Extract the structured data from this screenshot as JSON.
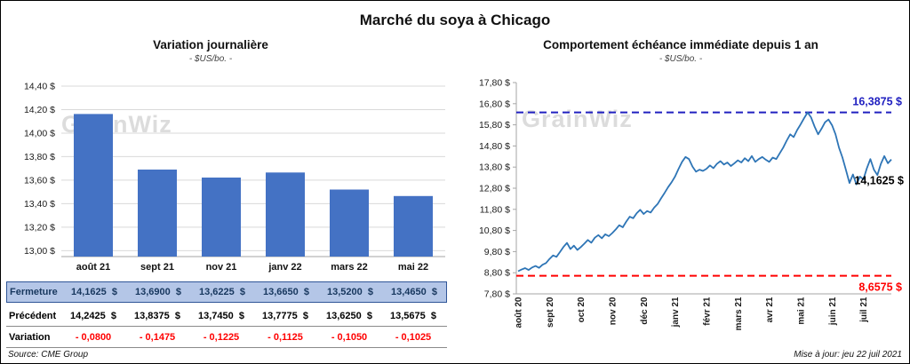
{
  "page": {
    "title": "Marché du soya à Chicago",
    "source_note": "Source: CME Group",
    "update_note": "Mise à jour: jeu 22 juil 2021",
    "watermark": "GrainWiz"
  },
  "colors": {
    "bar": "#4472C4",
    "line": "#2E75B6",
    "high": "#2020C0",
    "low": "#FF0000",
    "grid": "#D9D9D9",
    "axis": "#A6A6A6",
    "watermark": "#DCDCDC",
    "table_highlight_bg": "#B4C6E7",
    "table_highlight_text": "#17375E",
    "negative": "#FF0000"
  },
  "chart_data": [
    {
      "type": "bar",
      "title": "Variation  journalière",
      "subtitle": "- $US/bo. -",
      "categories": [
        "août 21",
        "sept 21",
        "nov 21",
        "janv 22",
        "mars 22",
        "mai 22"
      ],
      "values": [
        14.1625,
        13.69,
        13.6225,
        13.665,
        13.52,
        13.465
      ],
      "ylim": [
        12.95,
        14.4
      ],
      "yticks": [
        14.4,
        14.2,
        14.0,
        13.8,
        13.6,
        13.4,
        13.2,
        13.0
      ],
      "grid": true,
      "legend": "none"
    },
    {
      "type": "line",
      "title": "Comportement  échéance  immédiate  depuis 1 an",
      "subtitle": "- $US/bo. -",
      "x_labels": [
        "août 20",
        "sept 20",
        "oct 20",
        "nov 20",
        "déc 20",
        "janv 21",
        "févr 21",
        "mars 21",
        "avr 21",
        "mai 21",
        "juin 21",
        "juil 21"
      ],
      "values": [
        8.87,
        8.95,
        9.02,
        8.93,
        9.05,
        9.12,
        9.03,
        9.18,
        9.26,
        9.45,
        9.62,
        9.55,
        9.78,
        10.02,
        10.21,
        9.92,
        10.08,
        9.88,
        10.02,
        10.18,
        10.35,
        10.22,
        10.46,
        10.58,
        10.43,
        10.62,
        10.53,
        10.68,
        10.85,
        11.05,
        10.95,
        11.22,
        11.45,
        11.38,
        11.62,
        11.78,
        11.58,
        11.72,
        11.65,
        11.88,
        12.05,
        12.32,
        12.58,
        12.85,
        13.08,
        13.35,
        13.72,
        14.05,
        14.28,
        14.18,
        13.82,
        13.58,
        13.68,
        13.62,
        13.72,
        13.88,
        13.75,
        13.95,
        14.08,
        13.92,
        14.02,
        13.85,
        13.98,
        14.12,
        14.02,
        14.22,
        14.08,
        14.32,
        14.05,
        14.18,
        14.28,
        14.15,
        14.05,
        14.25,
        14.18,
        14.45,
        14.72,
        15.05,
        15.35,
        15.22,
        15.55,
        15.82,
        16.12,
        16.39,
        16.15,
        15.72,
        15.35,
        15.62,
        15.92,
        16.05,
        15.78,
        15.35,
        14.72,
        14.25,
        13.65,
        13.05,
        13.45,
        12.98,
        13.35,
        13.22,
        13.75,
        14.18,
        13.68,
        13.42,
        13.95,
        14.32,
        13.98,
        14.1625
      ],
      "ylim": [
        7.8,
        17.8
      ],
      "yticks": [
        17.8,
        16.8,
        15.8,
        14.8,
        13.8,
        12.8,
        11.8,
        10.8,
        9.8,
        8.8,
        7.8
      ],
      "grid": false,
      "legend": "none",
      "x_label_rotation": 90,
      "high_line": {
        "value": 16.3875,
        "label": "16,3875  $"
      },
      "low_line": {
        "value": 8.6575,
        "label": "8,6575  $"
      },
      "last_point_label": "14,1625  $"
    }
  ],
  "table": {
    "rows": [
      {
        "label": "Fermeture",
        "values": [
          "14,1625  $",
          "13,6900  $",
          "13,6225  $",
          "13,6650  $",
          "13,5200  $",
          "13,4650  $"
        ]
      },
      {
        "label": "Précédent",
        "values": [
          "14,2425  $",
          "13,8375  $",
          "13,7450  $",
          "13,7775  $",
          "13,6250  $",
          "13,5675  $"
        ]
      },
      {
        "label": "Variation",
        "values": [
          "- 0,0800",
          "- 0,1475",
          "- 0,1225",
          "- 0,1125",
          "- 0,1050",
          "- 0,1025"
        ]
      }
    ]
  }
}
